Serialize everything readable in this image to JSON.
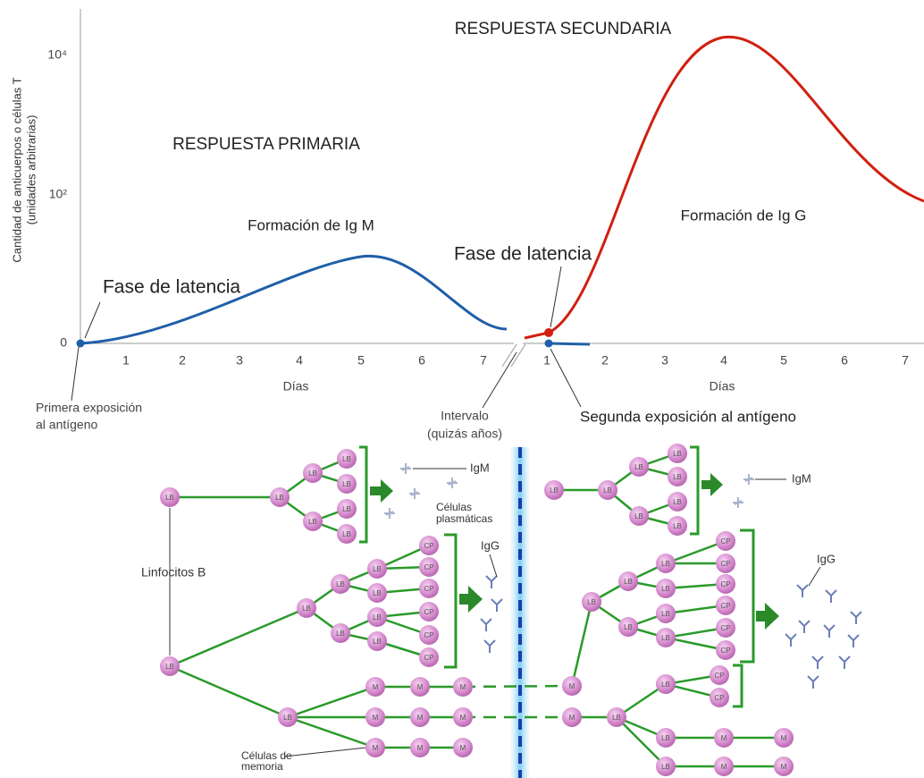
{
  "chart": {
    "y_axis_label": [
      "Cantidad de anticuerpos o células T",
      "(unidades arbitrarias)"
    ],
    "y_ticks": [
      "0",
      "10²",
      "10⁴"
    ],
    "x_ticks_left": [
      "1",
      "2",
      "3",
      "4",
      "5",
      "6",
      "7"
    ],
    "x_ticks_right": [
      "1",
      "2",
      "3",
      "4",
      "5",
      "6",
      "7"
    ],
    "x_axis_label_left": "Días",
    "x_axis_label_right": "Días",
    "title_secondary": "RESPUESTA SECUNDARIA",
    "title_primary": "RESPUESTA PRIMARIA",
    "igm_formation": "Formación de Ig M",
    "igg_formation": "Formación de Ig G",
    "latency_left": "Fase de latencia",
    "latency_right": "Fase de latencia",
    "first_exposure": [
      "Primera exposición",
      "al antígeno"
    ],
    "interval": [
      "Intervalo",
      "(quizás años)"
    ],
    "second_exposure": "Segunda exposición al antígeno"
  },
  "diagram": {
    "labels": {
      "igm_left": "IgM",
      "igm_right": "IgM",
      "plasma_cells": [
        "Células",
        "plasmáticas"
      ],
      "igg_left": "IgG",
      "igg_right": "IgG",
      "b_lymphocytes": "Linfocitos B",
      "memory_cells": [
        "Células de",
        "memoria"
      ]
    },
    "cells": [
      "LB",
      "LB",
      "LB",
      "LB",
      "LB",
      "LB",
      "LB",
      "LB",
      "LB",
      "LB",
      "LB",
      "LB",
      "LB",
      "LB",
      "LB",
      "LB",
      "CP",
      "CP",
      "CP",
      "CP",
      "CP",
      "CP",
      "LB",
      "M",
      "M",
      "M",
      "M",
      "M",
      "M",
      "M",
      "M",
      "M",
      "LB",
      "LB",
      "LB",
      "LB",
      "LB",
      "LB",
      "LB",
      "LB",
      "LB",
      "LB",
      "LB",
      "LB",
      "LB",
      "LB",
      "LB",
      "CP",
      "CP",
      "CP",
      "CP",
      "CP",
      "CP",
      "M",
      "M",
      "LB",
      "LB",
      "CP",
      "CP",
      "LB",
      "M",
      "M",
      "LB",
      "M",
      "M"
    ]
  }
}
